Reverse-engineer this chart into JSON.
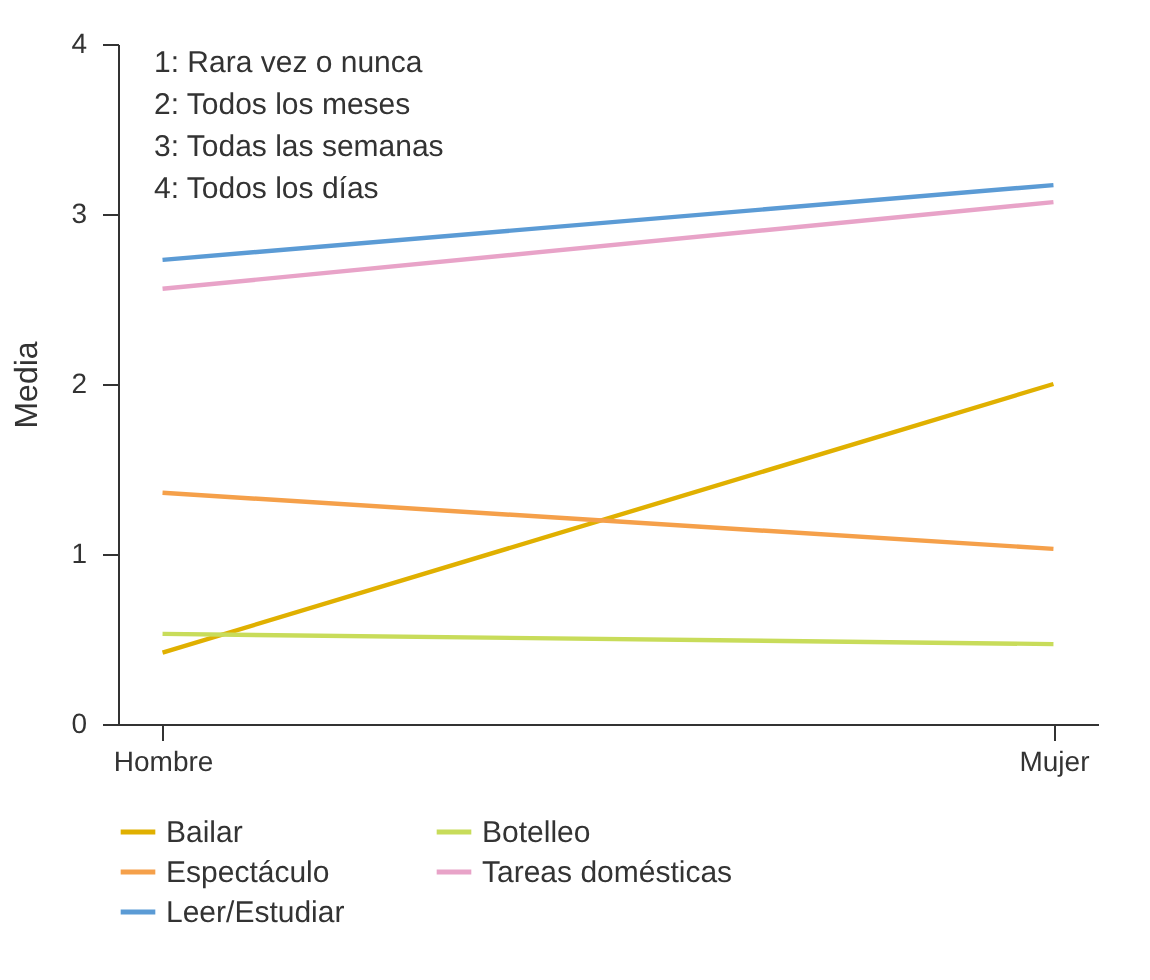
{
  "chart_data": {
    "type": "line",
    "ylabel": "Media",
    "categories": [
      "Hombre",
      "Mujer"
    ],
    "ylim": [
      0,
      4
    ],
    "yticks": [
      0,
      1,
      2,
      3,
      4
    ],
    "grid": false,
    "legend": "bottom",
    "marker": "none",
    "annotations": [
      "1: Rara vez o nunca",
      "2: Todos los meses",
      "3: Todas las semanas",
      "4: Todos los días"
    ],
    "series": [
      {
        "name": "Bailar",
        "color": "#e0b000",
        "values": [
          0.42,
          2.0
        ]
      },
      {
        "name": "Espectáculo",
        "color": "#f5a04a",
        "values": [
          1.36,
          1.03
        ]
      },
      {
        "name": "Leer/Estudiar",
        "color": "#5b9bd5",
        "values": [
          2.73,
          3.17
        ]
      },
      {
        "name": "Botelleo",
        "color": "#c8dc5a",
        "values": [
          0.53,
          0.47
        ]
      },
      {
        "name": "Tareas domésticas",
        "color": "#e8a3c8",
        "values": [
          2.56,
          3.07
        ]
      }
    ]
  }
}
